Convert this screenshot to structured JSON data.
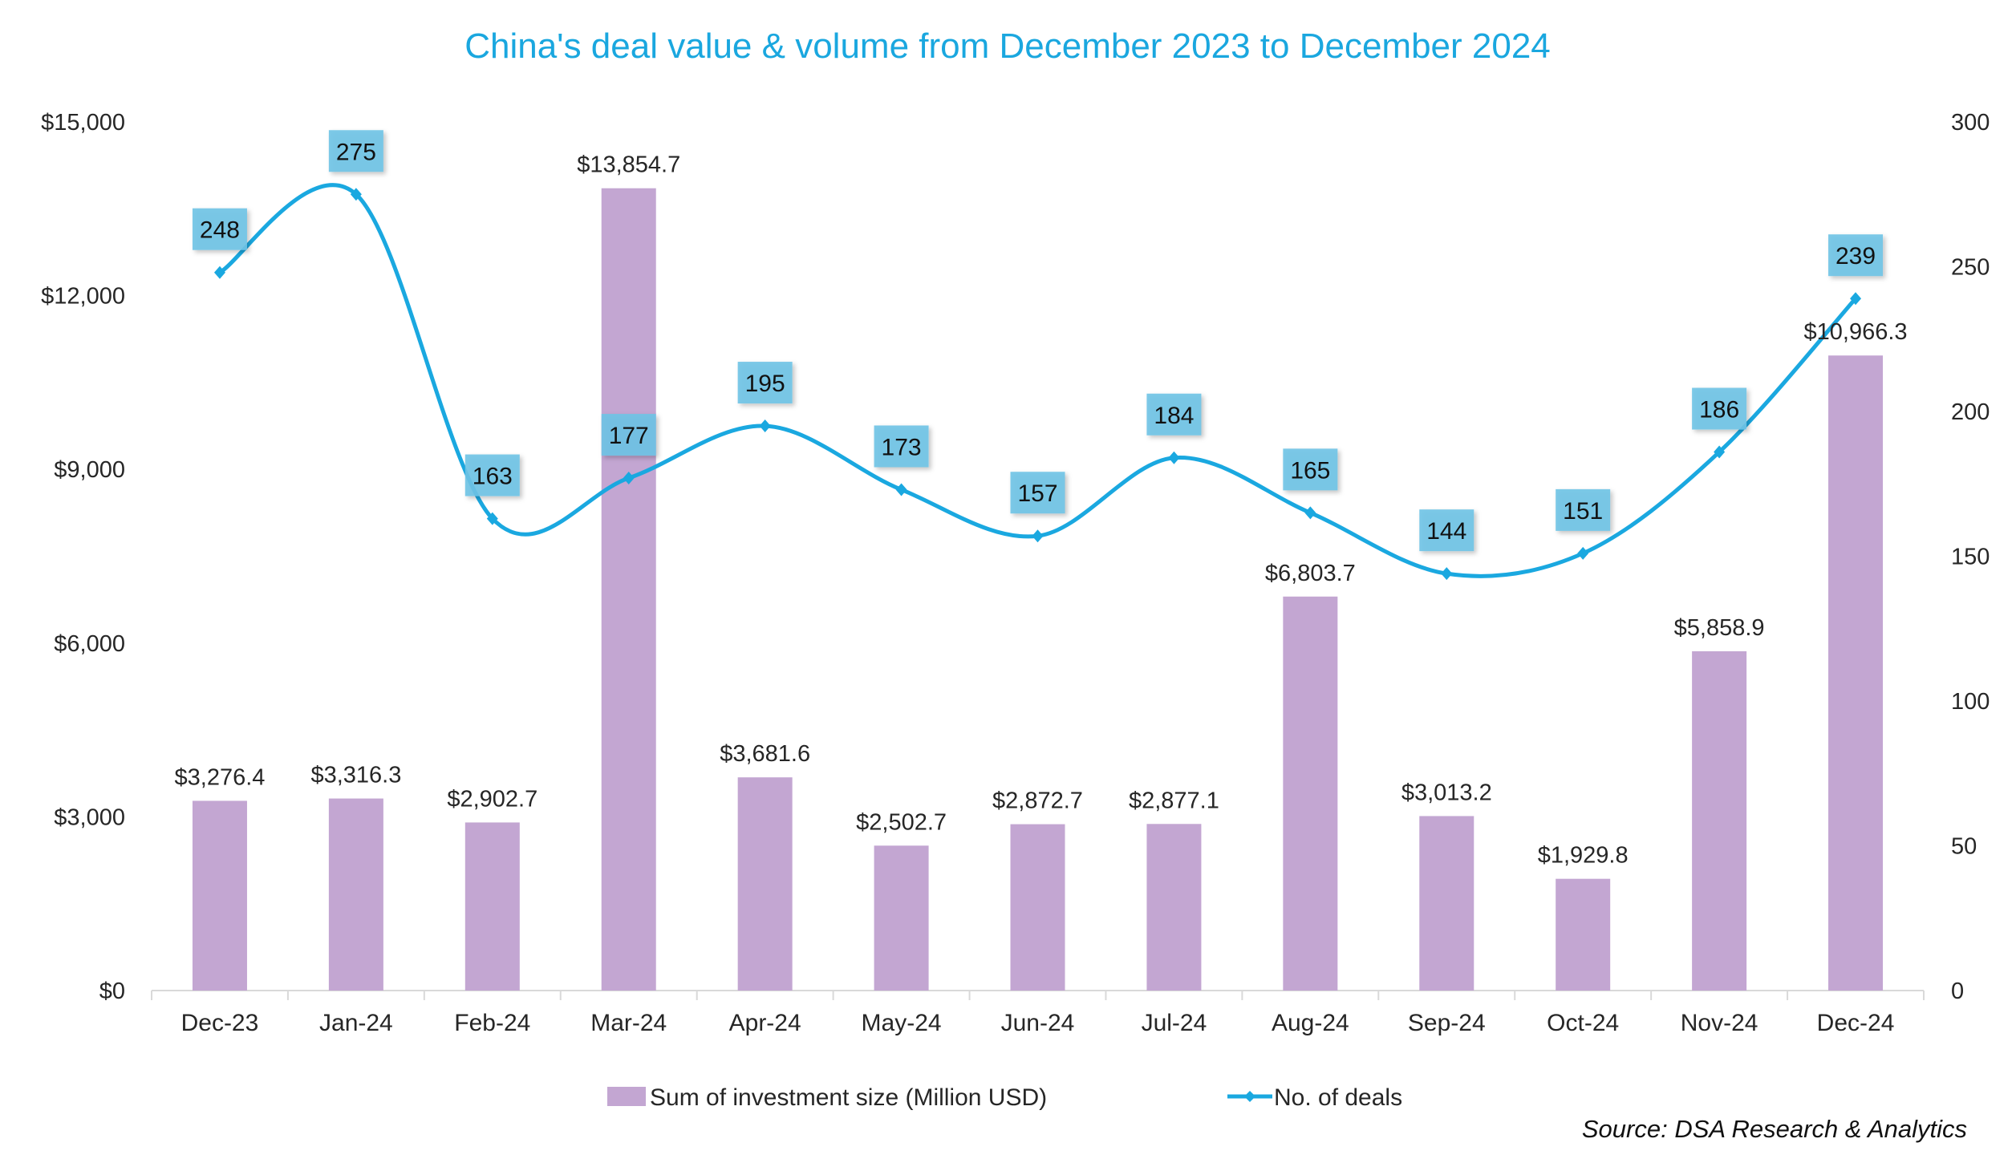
{
  "chart_data": {
    "type": "bar+line",
    "title": "China's deal value & volume from December 2023 to December 2024",
    "categories": [
      "Dec-23",
      "Jan-24",
      "Feb-24",
      "Mar-24",
      "Apr-24",
      "May-24",
      "Jun-24",
      "Jul-24",
      "Aug-24",
      "Sep-24",
      "Oct-24",
      "Nov-24",
      "Dec-24"
    ],
    "series": [
      {
        "name": "Sum of investment size (Million USD)",
        "type": "bar",
        "axis": "left",
        "color": "#c3a6d2",
        "values": [
          3276.4,
          3316.3,
          2902.7,
          13854.7,
          3681.6,
          2502.7,
          2872.7,
          2877.1,
          6803.7,
          3013.2,
          1929.8,
          5858.9,
          10966.3
        ],
        "labels": [
          "$3,276.4",
          "$3,316.3",
          "$2,902.7",
          "$13,854.7",
          "$3,681.6",
          "$2,502.7",
          "$2,872.7",
          "$2,877.1",
          "$6,803.7",
          "$3,013.2",
          "$1,929.8",
          "$5,858.9",
          "$10,966.3"
        ]
      },
      {
        "name": "No. of deals",
        "type": "line",
        "smooth": true,
        "axis": "right",
        "color": "#1aa8e0",
        "label_box_color": "#6ec3e6",
        "values": [
          248,
          275,
          163,
          177,
          195,
          173,
          157,
          184,
          165,
          144,
          151,
          186,
          239
        ],
        "labels": [
          "248",
          "275",
          "163",
          "177",
          "195",
          "173",
          "157",
          "184",
          "165",
          "144",
          "151",
          "186",
          "239"
        ]
      }
    ],
    "y_left": {
      "ylim": [
        0,
        15000
      ],
      "ticks": [
        0,
        3000,
        6000,
        9000,
        12000,
        15000
      ],
      "tick_labels": [
        "$0",
        "$3,000",
        "$6,000",
        "$9,000",
        "$12,000",
        "$15,000"
      ]
    },
    "y_right": {
      "ylim": [
        0,
        300
      ],
      "ticks": [
        0,
        50,
        100,
        150,
        200,
        250,
        300
      ],
      "tick_labels": [
        "0",
        "50",
        "100",
        "150",
        "200",
        "250",
        "300"
      ]
    },
    "xlabel": "",
    "ylabel": "",
    "grid": false,
    "legend": {
      "position": "bottom",
      "entries": [
        "Sum of investment size (Million USD)",
        "No. of deals"
      ]
    },
    "source": "Source: DSA Research & Analytics"
  }
}
